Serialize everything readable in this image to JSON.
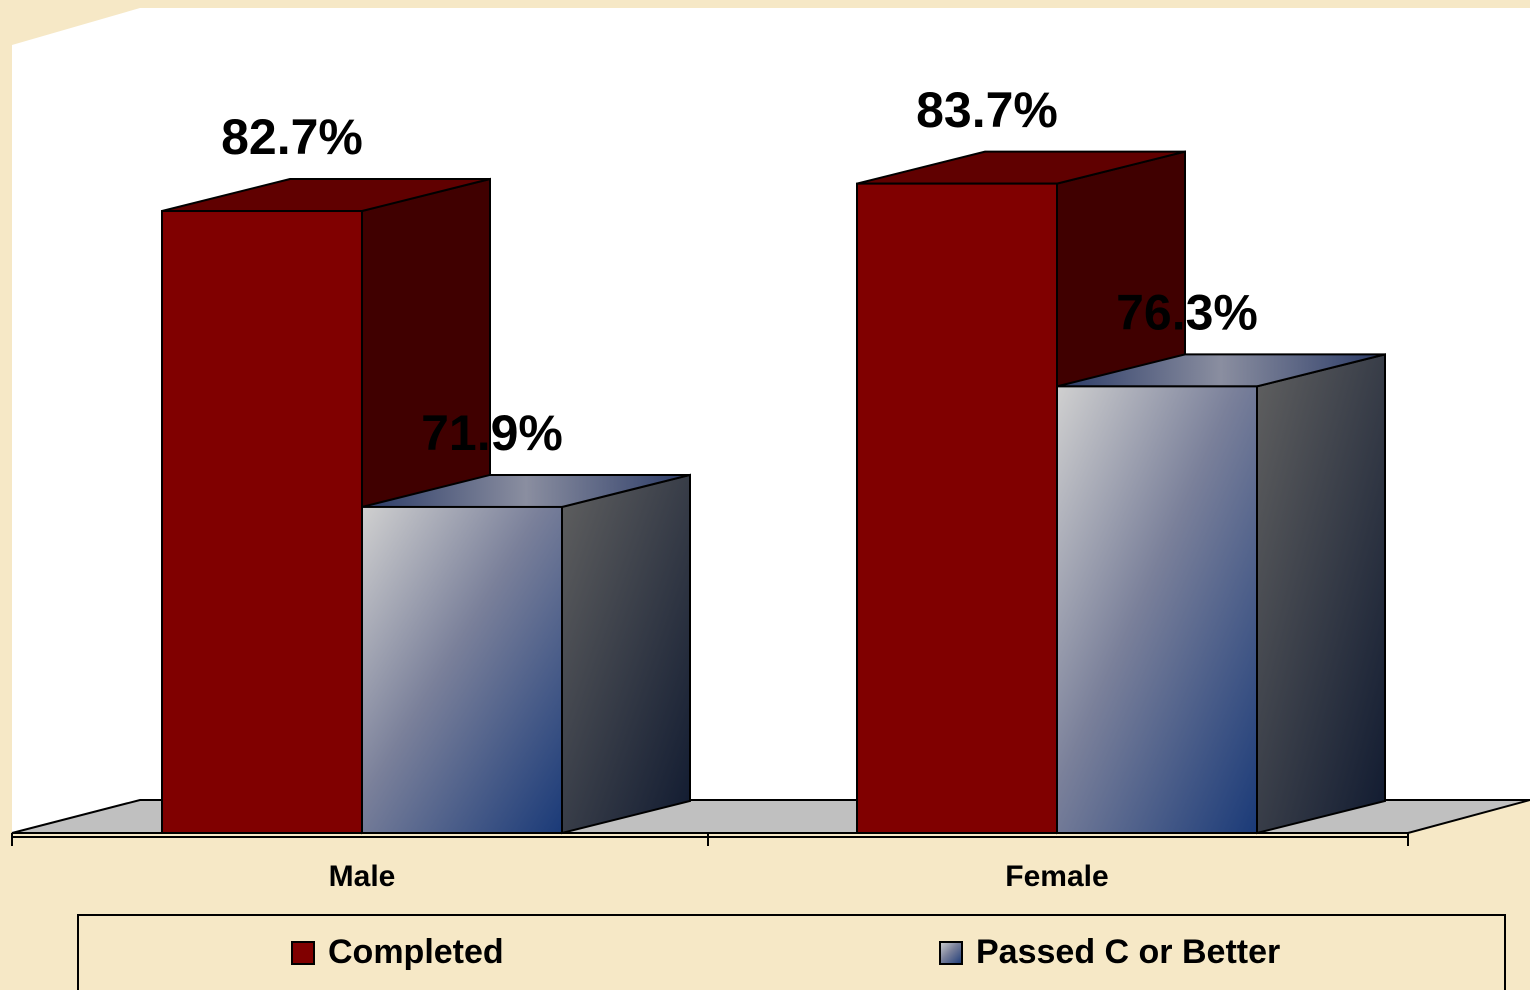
{
  "chart_data": {
    "type": "bar3d",
    "categories": [
      "Male",
      "Female"
    ],
    "series": [
      {
        "name": "Completed",
        "color": "#800000",
        "values": [
          82.7,
          83.7
        ],
        "value_labels": [
          "82.7%",
          "83.7%"
        ]
      },
      {
        "name": "Passed C or Better",
        "color": "#1e3c78",
        "values": [
          71.9,
          76.3
        ],
        "value_labels": [
          "71.9%",
          "76.3%"
        ]
      }
    ],
    "ylim": [
      60,
      90
    ],
    "legend": "bottom"
  }
}
